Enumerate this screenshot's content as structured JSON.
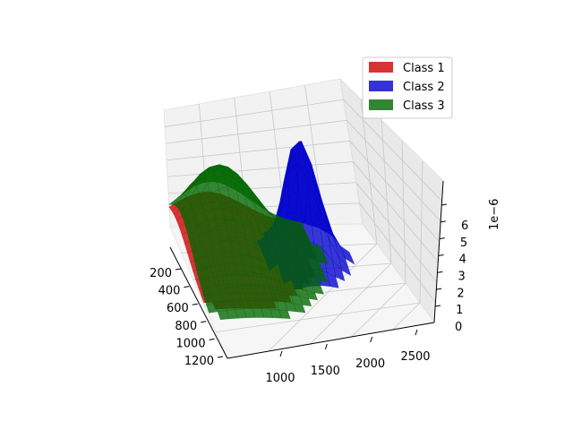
{
  "chart_data": {
    "type": "surface",
    "projection": "3d",
    "x_ticks": [
      "200",
      "400",
      "600",
      "800",
      "1000",
      "1200"
    ],
    "y_ticks": [
      "1000",
      "1500",
      "2000",
      "2500"
    ],
    "z_ticks": [
      "0",
      "1",
      "2",
      "3",
      "4",
      "5",
      "6"
    ],
    "z_offset_label": "1e−6",
    "xlim": [
      150,
      1300
    ],
    "ylim": [
      600,
      2600
    ],
    "zlim": [
      0,
      6.8e-06
    ],
    "grid": true,
    "legend": {
      "position": "top-right"
    },
    "series": [
      {
        "name": "Class 1",
        "color": "#cc0000",
        "shape": "broad gaussian surface",
        "center_x": 300,
        "center_y": 1000,
        "peak": 2.3e-06
      },
      {
        "name": "Class 2",
        "color": "#0000cc",
        "shape": "sharp gaussian surface",
        "center_x": 450,
        "center_y": 1850,
        "peak": 6.6e-06
      },
      {
        "name": "Class 3",
        "color": "#006600",
        "shape": "peaked surface",
        "center_x": 420,
        "center_y": 1050,
        "peak": 4.8e-06
      }
    ]
  }
}
